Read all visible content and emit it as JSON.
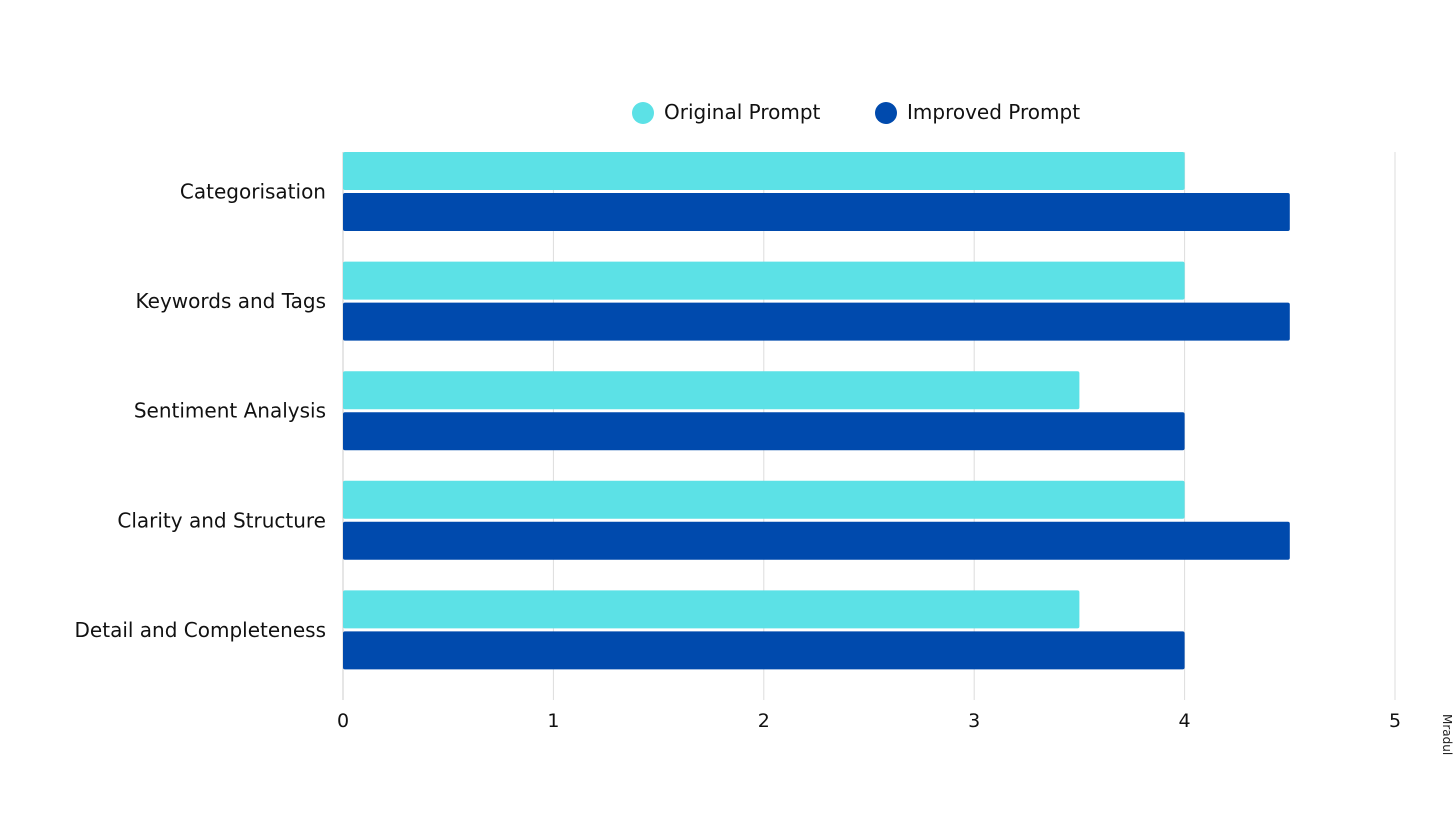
{
  "chart_data": {
    "type": "bar",
    "orientation": "horizontal",
    "categories": [
      "Categorisation",
      "Keywords and Tags",
      "Sentiment Analysis",
      "Clarity and Structure",
      "Detail and Completeness"
    ],
    "series": [
      {
        "name": "Original Prompt",
        "color": "#5CE1E6",
        "values": [
          4,
          4,
          3.5,
          4,
          3.5
        ]
      },
      {
        "name": "Improved Prompt",
        "color": "#004AAD",
        "values": [
          4.5,
          4.5,
          4,
          4.5,
          4
        ]
      }
    ],
    "xlim": [
      0,
      5
    ],
    "xticks": [
      "0",
      "1",
      "2",
      "3",
      "4",
      "5"
    ],
    "grid": true,
    "legend": "top-center"
  },
  "watermark": "Mradul"
}
